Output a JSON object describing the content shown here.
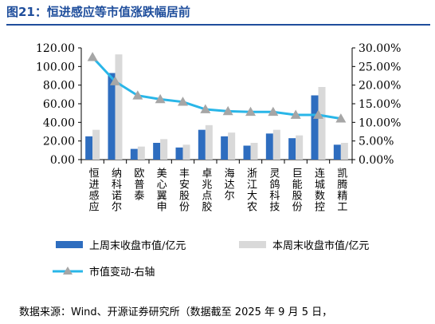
{
  "header": {
    "title": "图21：恒进感应等市值涨跌幅居前"
  },
  "footer": {
    "source": "数据来源：Wind、开源证券研究所（数据截至 2025 年 9 月 5 日，"
  },
  "chart_data": {
    "type": "bar",
    "categories": [
      "恒进感应",
      "纳科诺尔",
      "欧普泰",
      "美心翼申",
      "丰安股份",
      "卓兆点胶",
      "海达尔",
      "浙江大农",
      "灵鸽科技",
      "巨能股份",
      "连城数控",
      "凯腾精工"
    ],
    "series": [
      {
        "name": "上周末收盘市值/亿元",
        "type": "bar",
        "axis": "left",
        "color": "#2e6dbf",
        "values": [
          25,
          93,
          11.5,
          18,
          13,
          32,
          25,
          15,
          28,
          23,
          69,
          16
        ]
      },
      {
        "name": "本周末收盘市值/亿元",
        "type": "bar",
        "axis": "left",
        "color": "#d9d9d9",
        "values": [
          32,
          113,
          14,
          22,
          16,
          37,
          29,
          18,
          32,
          26,
          78,
          18
        ]
      },
      {
        "name": "市值变动-右轴",
        "type": "line",
        "axis": "right",
        "color": "#29b6e8",
        "marker_color": "#a6a6a6",
        "values": [
          27.5,
          21,
          17.2,
          16.2,
          15.5,
          13.5,
          13,
          12.8,
          12.8,
          12,
          12,
          11
        ]
      }
    ],
    "y_left": {
      "min": 0,
      "max": 120,
      "ticks": [
        "0.00",
        "20.00",
        "40.00",
        "60.00",
        "80.00",
        "100.00",
        "120.00"
      ]
    },
    "y_right": {
      "min": 0,
      "max": 30,
      "ticks": [
        "0.00%",
        "5.00%",
        "10.00%",
        "15.00%",
        "20.00%",
        "25.00%",
        "30.00%"
      ]
    },
    "grid": false,
    "legend": "bottom"
  }
}
